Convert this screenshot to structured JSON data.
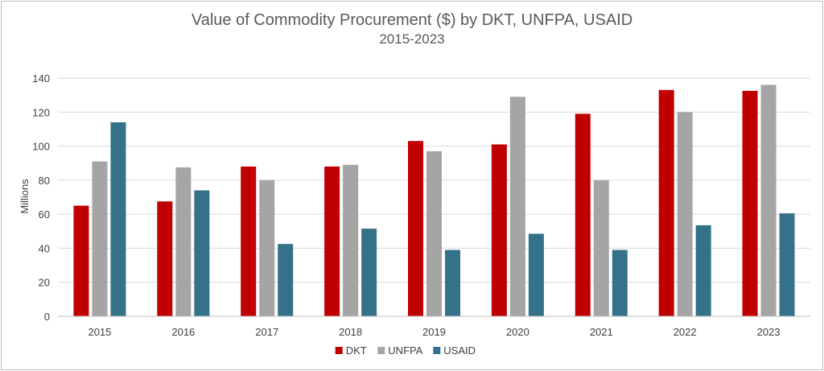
{
  "chart_data": {
    "type": "bar",
    "title": "Value of Commodity Procurement ($) by DKT, UNFPA, USAID",
    "subtitle": "2015-2023",
    "ylabel": "Millions",
    "xlabel": "",
    "ylim": [
      0,
      140
    ],
    "yticks": [
      0,
      20,
      40,
      60,
      80,
      100,
      120,
      140
    ],
    "grid": true,
    "legend_position": "bottom",
    "categories": [
      "2015",
      "2016",
      "2017",
      "2018",
      "2019",
      "2020",
      "2021",
      "2022",
      "2023"
    ],
    "series": [
      {
        "name": "DKT",
        "color": "#c00000",
        "values": [
          65,
          67.5,
          88,
          88,
          103,
          101,
          119,
          133,
          132.5
        ]
      },
      {
        "name": "UNFPA",
        "color": "#a5a5a5",
        "values": [
          91,
          87.5,
          80,
          89,
          97,
          129,
          80,
          120,
          136
        ]
      },
      {
        "name": "USAID",
        "color": "#35728a",
        "values": [
          114,
          74,
          42.5,
          51.5,
          39,
          48.5,
          39,
          53.5,
          60.5
        ]
      }
    ]
  }
}
